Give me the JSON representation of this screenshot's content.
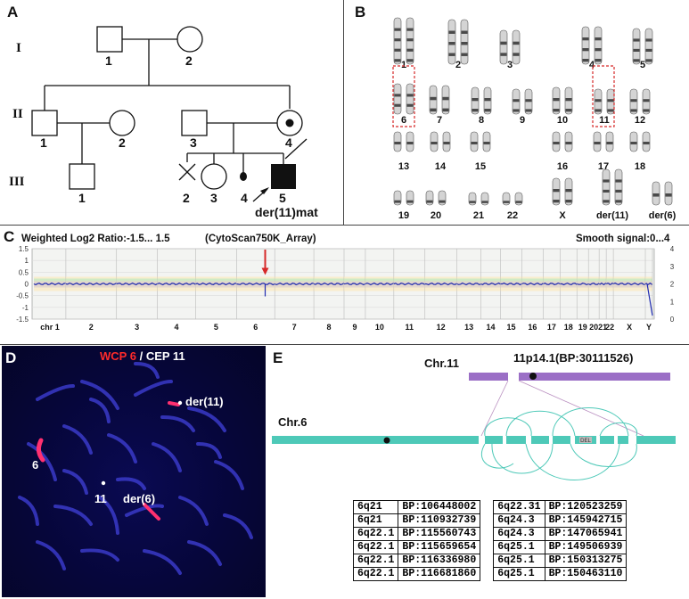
{
  "panels": {
    "a": "A",
    "b": "B",
    "c": "C",
    "d": "D",
    "e": "E"
  },
  "pedigree": {
    "generations": [
      "I",
      "II",
      "III"
    ],
    "ind": {
      "I1": "1",
      "I2": "2",
      "II1": "1",
      "II2": "2",
      "II3": "3",
      "II4": "4",
      "III1": "1",
      "III2": "2",
      "III3": "3",
      "III4": "4",
      "III5": "5"
    },
    "proband_label": "der(11)mat"
  },
  "karyotype": {
    "row1": [
      "1",
      "2",
      "3",
      "4",
      "5"
    ],
    "row2": [
      "6",
      "7",
      "8",
      "9",
      "10",
      "11",
      "12"
    ],
    "row3": [
      "13",
      "14",
      "15",
      "16",
      "17",
      "18"
    ],
    "row4": [
      "19",
      "20",
      "21",
      "22",
      "X",
      "der(11)",
      "der(6)"
    ],
    "highlight_color": "#d62828"
  },
  "array": {
    "title_left": "Weighted Log2 Ratio:-1.5... 1.5",
    "title_mid": "(CytoScan750K_Array)",
    "title_right": "Smooth signal:0...4",
    "y_left": [
      "1.5",
      "1",
      "0.5",
      "0",
      "-0.5",
      "-1",
      "-1.5"
    ],
    "y_right": [
      "4",
      "3",
      "2",
      "1",
      "0"
    ],
    "chromosomes": [
      "chr 1",
      "2",
      "3",
      "4",
      "5",
      "6",
      "7",
      "8",
      "9",
      "10",
      "11",
      "12",
      "13",
      "14",
      "15",
      "16",
      "17",
      "18",
      "19",
      "20",
      "21",
      "22",
      "X",
      "Y"
    ],
    "arrow_color": "#d62828"
  },
  "fish": {
    "label_red": "WCP 6",
    "label_sep": "/",
    "label_white": "CEP 11",
    "marks": {
      "der11": "der(11)",
      "six": "6",
      "eleven": "11",
      "der6": "der(6)"
    }
  },
  "schematic": {
    "chr11_label": "Chr.11",
    "breakpoint_label": "11p14.1(BP:30111526)",
    "chr6_label": "Chr.6",
    "del_label": "DEL",
    "chr11_color": "#9b6fc6",
    "chr6_color": "#4ec9b8"
  },
  "bp_table": {
    "left": [
      [
        "6q21",
        "BP:106448002"
      ],
      [
        "6q21",
        "BP:110932739"
      ],
      [
        "6q22.1",
        "BP:115560743"
      ],
      [
        "6q22.1",
        "BP:115659654"
      ],
      [
        "6q22.1",
        "BP:116336980"
      ],
      [
        "6q22.1",
        "BP:116681860"
      ]
    ],
    "right": [
      [
        "6q22.31",
        "BP:120523259"
      ],
      [
        "6q24.3",
        "BP:145942715"
      ],
      [
        "6q24.3",
        "BP:147065941"
      ],
      [
        "6q25.1",
        "BP:149506939"
      ],
      [
        "6q25.1",
        "BP:150313275"
      ],
      [
        "6q25.1",
        "BP:150463110"
      ]
    ]
  }
}
